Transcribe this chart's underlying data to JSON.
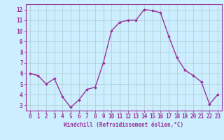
{
  "x": [
    0,
    1,
    2,
    3,
    4,
    5,
    6,
    7,
    8,
    9,
    10,
    11,
    12,
    13,
    14,
    15,
    16,
    17,
    18,
    19,
    20,
    21,
    22,
    23
  ],
  "y": [
    6.0,
    5.8,
    5.0,
    5.5,
    3.8,
    2.8,
    3.5,
    4.5,
    4.7,
    7.0,
    10.0,
    10.8,
    11.0,
    11.0,
    12.0,
    11.9,
    11.7,
    9.5,
    7.5,
    6.3,
    5.8,
    5.2,
    3.1,
    4.0
  ],
  "line_color": "#993399",
  "marker": "D",
  "marker_size": 1.8,
  "bg_color": "#cceeff",
  "grid_color": "#aacccc",
  "xlabel": "Windchill (Refroidissement éolien,°C)",
  "xlabel_color": "#993399",
  "tick_color": "#993399",
  "label_color": "#993399",
  "ylim": [
    2.5,
    12.5
  ],
  "xlim": [
    -0.5,
    23.5
  ],
  "yticks": [
    3,
    4,
    5,
    6,
    7,
    8,
    9,
    10,
    11,
    12
  ],
  "xticks": [
    0,
    1,
    2,
    3,
    4,
    5,
    6,
    7,
    8,
    9,
    10,
    11,
    12,
    13,
    14,
    15,
    16,
    17,
    18,
    19,
    20,
    21,
    22,
    23
  ],
  "line_width": 1.0,
  "tick_fontsize": 5.5,
  "xlabel_fontsize": 5.5
}
